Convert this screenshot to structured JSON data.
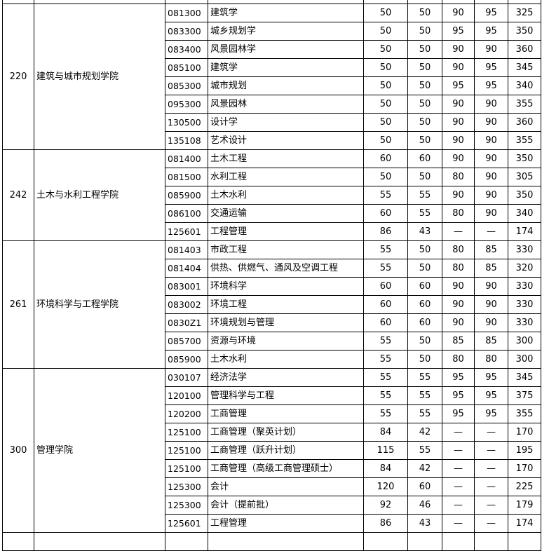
{
  "groups": [
    {
      "code": "220",
      "name": "建筑与城市规划学院",
      "rows": [
        [
          "081300",
          "建筑学",
          "50",
          "50",
          "90",
          "95",
          "325"
        ],
        [
          "083300",
          "城乡规划学",
          "50",
          "50",
          "95",
          "95",
          "350"
        ],
        [
          "083400",
          "风景园林学",
          "50",
          "50",
          "90",
          "90",
          "360"
        ],
        [
          "085100",
          "建筑学",
          "50",
          "50",
          "90",
          "95",
          "345"
        ],
        [
          "085300",
          "城市规划",
          "50",
          "50",
          "95",
          "95",
          "340"
        ],
        [
          "095300",
          "风景园林",
          "50",
          "50",
          "90",
          "90",
          "355"
        ],
        [
          "130500",
          "设计学",
          "50",
          "50",
          "90",
          "90",
          "360"
        ],
        [
          "135108",
          "艺术设计",
          "50",
          "50",
          "90",
          "90",
          "355"
        ]
      ]
    },
    {
      "code": "242",
      "name": "土木与水利工程学院",
      "rows": [
        [
          "081400",
          "土木工程",
          "60",
          "60",
          "90",
          "90",
          "350"
        ],
        [
          "081500",
          "水利工程",
          "50",
          "50",
          "80",
          "90",
          "305"
        ],
        [
          "085900",
          "土木水利",
          "55",
          "55",
          "90",
          "90",
          "350"
        ],
        [
          "086100",
          "交通运输",
          "60",
          "55",
          "80",
          "90",
          "340"
        ],
        [
          "125601",
          "工程管理",
          "86",
          "43",
          "—",
          "—",
          "174"
        ]
      ]
    },
    {
      "code": "261",
      "name": "环境科学与工程学院",
      "rows": [
        [
          "081403",
          "市政工程",
          "55",
          "50",
          "80",
          "85",
          "330"
        ],
        [
          "081404",
          "供热、供燃气、通风及空调工程",
          "55",
          "50",
          "80",
          "85",
          "320"
        ],
        [
          "083001",
          "环境科学",
          "60",
          "60",
          "90",
          "90",
          "330"
        ],
        [
          "083002",
          "环境工程",
          "60",
          "60",
          "90",
          "90",
          "330"
        ],
        [
          "0830Z1",
          "环境规划与管理",
          "60",
          "60",
          "90",
          "90",
          "330"
        ],
        [
          "085700",
          "资源与环境",
          "55",
          "50",
          "85",
          "85",
          "300"
        ],
        [
          "085900",
          "土木水利",
          "55",
          "50",
          "80",
          "80",
          "300"
        ]
      ]
    },
    {
      "code": "300",
      "name": "管理学院",
      "rows": [
        [
          "030107",
          "经济法学",
          "55",
          "55",
          "95",
          "95",
          "345"
        ],
        [
          "120100",
          "管理科学与工程",
          "55",
          "55",
          "95",
          "95",
          "375"
        ],
        [
          "120200",
          "工商管理",
          "55",
          "55",
          "95",
          "95",
          "355"
        ],
        [
          "125100",
          "工商管理（聚英计划）",
          "84",
          "42",
          "—",
          "—",
          "170"
        ],
        [
          "125100",
          "工商管理（跃升计划）",
          "115",
          "55",
          "—",
          "—",
          "195"
        ],
        [
          "125100",
          "工商管理（高级工商管理硕士）",
          "84",
          "42",
          "—",
          "—",
          "170"
        ],
        [
          "125300",
          "会计",
          "120",
          "60",
          "—",
          "—",
          "225"
        ],
        [
          "125300",
          "会计（提前批）",
          "92",
          "46",
          "—",
          "—",
          "179"
        ],
        [
          "125601",
          "工程管理",
          "86",
          "43",
          "—",
          "—",
          "174"
        ]
      ]
    }
  ]
}
